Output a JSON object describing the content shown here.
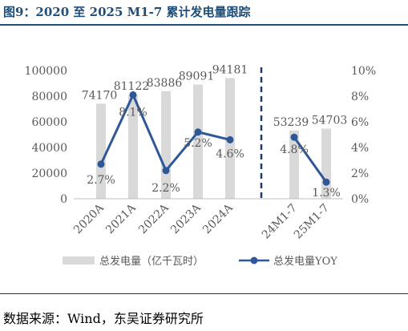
{
  "figure_title": "图9：2020 至 2025 M1-7 累计发电量跟踪",
  "source": "数据来源：Wind，东吴证券研究所",
  "colors": {
    "bar": "#d9d9d9",
    "line": "#2e5797",
    "title": "#1f4e79",
    "axis_text": "#595959"
  },
  "chart_data": {
    "type": "bar+line",
    "categories": [
      "2020A",
      "2021A",
      "2022A",
      "2023A",
      "2024A",
      "24M1-7",
      "25M1-7"
    ],
    "bars": {
      "name": "总发电量（亿千瓦时）",
      "values": [
        74170,
        81122,
        83886,
        89091,
        94181,
        53239,
        54703
      ]
    },
    "line": {
      "name": "总发电量YOY",
      "values": [
        2.7,
        8.1,
        2.2,
        5.2,
        4.6,
        4.8,
        1.3
      ],
      "labels": [
        "2.7%",
        "8.1%",
        "2.2%",
        "5.2%",
        "4.6%",
        "4.8%",
        "1.3%"
      ]
    },
    "y_left": {
      "min": 0,
      "max": 100000,
      "ticks": [
        0,
        20000,
        40000,
        60000,
        80000,
        100000
      ]
    },
    "y_right": {
      "min": 0,
      "max": 10,
      "ticks": [
        "0%",
        "2%",
        "4%",
        "6%",
        "8%",
        "10%"
      ]
    },
    "divider_after_index": 4,
    "legend_position": "bottom"
  }
}
